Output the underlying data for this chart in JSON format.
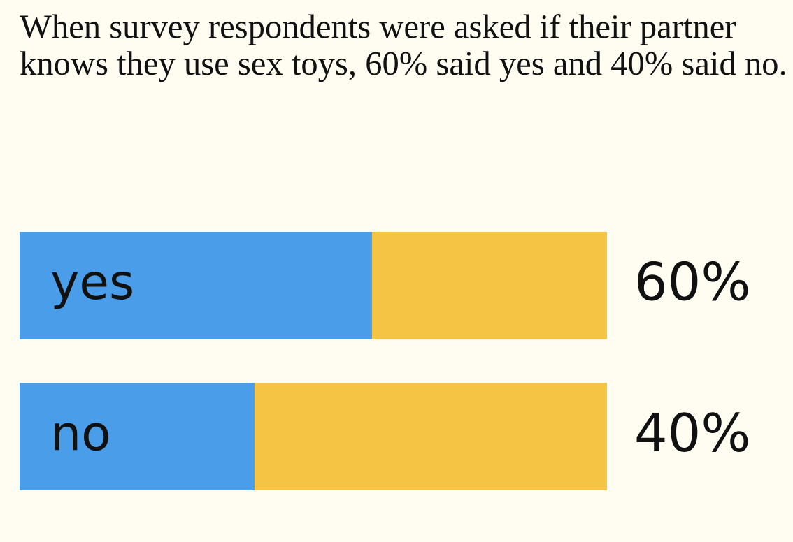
{
  "chart_data": {
    "type": "bar",
    "orientation": "horizontal",
    "stacked": true,
    "title": "When survey respondents were asked if their partner knows they use sex toys, 60% said yes and 40% said no.",
    "categories": [
      "yes",
      "no"
    ],
    "xlim": [
      0,
      100
    ],
    "series": [
      {
        "color": "#4a9de8",
        "values": [
          60,
          40
        ],
        "value_labels": [
          "60%",
          "40%"
        ]
      },
      {
        "color": "#f5c445",
        "values": [
          40,
          60
        ]
      }
    ]
  }
}
